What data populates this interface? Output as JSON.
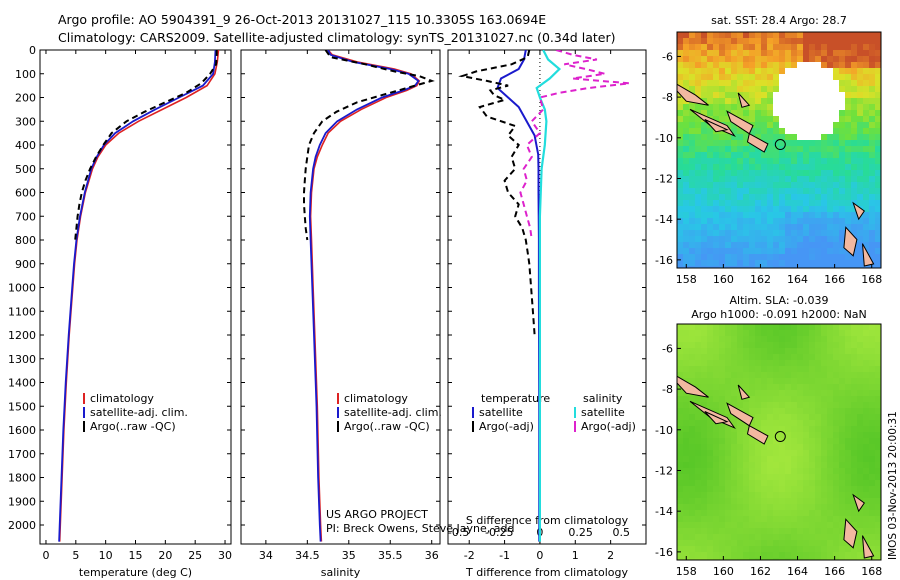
{
  "header": {
    "line1": "Argo profile: AO 5904391_9 26-Oct-2013 20131027_115 10.3305S 163.0694E",
    "line2": "Climatology: CARS2009. Satellite-adjusted climatology: synTS_20131027.nc (0.34d later)"
  },
  "project_text": [
    "US ARGO PROJECT",
    "PI: Breck Owens, Steve Jayne, add"
  ],
  "timestamp": "IMOS 03-Nov-2013 20:00:31",
  "colors": {
    "climatology": "#dd2222",
    "satellite": "#1a1acc",
    "argo": "#000000",
    "sal_satellite": "#22dddd",
    "sal_argo": "#dd22cc",
    "land": "#f2b8a0"
  },
  "chart_data": [
    {
      "type": "line",
      "panel": "temperature",
      "xlabel": "temperature (deg C)",
      "xlim": [
        -1,
        31
      ],
      "xticks": [
        0,
        5,
        10,
        15,
        20,
        25,
        30
      ],
      "ylim": [
        0,
        2080
      ],
      "yticks": [
        0,
        100,
        200,
        300,
        400,
        500,
        600,
        700,
        800,
        900,
        1000,
        1100,
        1200,
        1300,
        1400,
        1500,
        1600,
        1700,
        1800,
        1900,
        2000
      ],
      "legend": [
        "climatology",
        "satellite-adj. clim.",
        "Argo(..raw -QC)"
      ],
      "series": [
        {
          "name": "climatology",
          "depth": [
            0,
            50,
            100,
            150,
            200,
            250,
            300,
            350,
            400,
            450,
            500,
            600,
            700,
            800,
            900,
            1000,
            1200,
            1400,
            1600,
            1800,
            2000,
            2070
          ],
          "values": [
            28.9,
            28.7,
            28.3,
            27.0,
            23.5,
            19.5,
            15.5,
            12.2,
            10.0,
            8.7,
            7.8,
            6.6,
            5.8,
            5.2,
            4.8,
            4.5,
            3.9,
            3.4,
            3.0,
            2.7,
            2.4,
            2.3
          ]
        },
        {
          "name": "satellite-adj. clim.",
          "depth": [
            0,
            50,
            100,
            150,
            200,
            250,
            300,
            350,
            400,
            450,
            500,
            600,
            700,
            800,
            900,
            1000,
            1200,
            1400,
            1600,
            1800,
            2000,
            2070
          ],
          "values": [
            28.4,
            28.3,
            28.0,
            26.3,
            22.3,
            18.3,
            14.6,
            11.6,
            9.7,
            8.5,
            7.6,
            6.5,
            5.7,
            5.1,
            4.7,
            4.4,
            3.8,
            3.3,
            2.9,
            2.6,
            2.3,
            2.2
          ]
        },
        {
          "name": "Argo(..raw -QC)",
          "depth": [
            0,
            20,
            60,
            100,
            140,
            180,
            220,
            260,
            300,
            350,
            400,
            450,
            500,
            550,
            600,
            650,
            700,
            800
          ],
          "values": [
            28.6,
            28.6,
            28.5,
            27.5,
            26.0,
            23.5,
            20.0,
            16.5,
            13.5,
            11.0,
            9.6,
            8.4,
            7.4,
            6.6,
            6.0,
            5.6,
            5.3,
            4.9
          ]
        }
      ]
    },
    {
      "type": "line",
      "panel": "salinity",
      "xlabel": "salinity",
      "xlim": [
        33.7,
        36.1
      ],
      "xticks": [
        34,
        34.5,
        35,
        35.5,
        36
      ],
      "xticklabels": [
        "34",
        "34.5",
        "35",
        "35.5",
        "36"
      ],
      "ylim": [
        0,
        2080
      ],
      "legend": [
        "climatology",
        "satellite-adj. clim.",
        "Argo(..raw -QC)"
      ],
      "series": [
        {
          "name": "climatology",
          "depth": [
            0,
            20,
            50,
            80,
            100,
            130,
            150,
            170,
            200,
            250,
            300,
            350,
            400,
            450,
            500,
            600,
            700,
            800,
            1000,
            1200,
            1500,
            1800,
            2000,
            2070
          ],
          "values": [
            34.75,
            34.8,
            35.1,
            35.55,
            35.75,
            35.85,
            35.82,
            35.7,
            35.45,
            35.15,
            34.9,
            34.75,
            34.68,
            34.62,
            34.58,
            34.55,
            34.54,
            34.55,
            34.57,
            34.59,
            34.62,
            34.64,
            34.66,
            34.67
          ]
        },
        {
          "name": "satellite-adj. clim.",
          "depth": [
            0,
            20,
            50,
            80,
            100,
            130,
            150,
            170,
            200,
            250,
            300,
            350,
            400,
            450,
            500,
            600,
            700,
            800,
            1000,
            1200,
            1500,
            1800,
            2000,
            2070
          ],
          "values": [
            34.75,
            34.78,
            35.05,
            35.5,
            35.72,
            35.84,
            35.8,
            35.66,
            35.4,
            35.1,
            34.86,
            34.72,
            34.65,
            34.6,
            34.57,
            34.54,
            34.53,
            34.54,
            34.56,
            34.58,
            34.61,
            34.63,
            34.65,
            34.66
          ]
        },
        {
          "name": "Argo(..raw -QC)",
          "depth": [
            0,
            30,
            60,
            90,
            110,
            130,
            150,
            170,
            190,
            220,
            260,
            300,
            350,
            400,
            450,
            500,
            550,
            600,
            650,
            700,
            750,
            800
          ],
          "values": [
            34.72,
            34.78,
            35.2,
            35.55,
            35.85,
            36.0,
            35.8,
            35.6,
            35.4,
            35.1,
            34.85,
            34.68,
            34.58,
            34.52,
            34.5,
            34.48,
            34.47,
            34.46,
            34.46,
            34.47,
            34.48,
            34.5
          ]
        }
      ]
    },
    {
      "type": "line",
      "panel": "difference",
      "xlabel_T": "T difference from climatology",
      "xlabel_S": "S difference from climatology",
      "xlim_T": [
        -2.6,
        3.0
      ],
      "xticks_T": [
        -2,
        -1,
        0,
        1,
        2
      ],
      "xticks_S": [
        -0.5,
        -0.25,
        0,
        0.25,
        0.5
      ],
      "xticklabels_S": [
        "-0.5",
        "-0.25",
        "0",
        "0.25",
        "0.5"
      ],
      "ylim": [
        0,
        2080
      ],
      "legend_titles": [
        "temperature",
        "salinity"
      ],
      "legend": [
        "satellite",
        "Argo(-adj)",
        "satellite",
        "Argo(-adj)"
      ],
      "series": [
        {
          "name": "T satellite",
          "depth": [
            0,
            40,
            80,
            120,
            160,
            200,
            240,
            280,
            320,
            360,
            400,
            440,
            500,
            600,
            800,
            1000,
            1500,
            2000,
            2070
          ],
          "values": [
            -0.4,
            -0.45,
            -0.6,
            -1.1,
            -1.2,
            -0.9,
            -0.6,
            -0.45,
            -0.3,
            -0.15,
            -0.1,
            -0.05,
            -0.04,
            -0.04,
            -0.03,
            -0.03,
            -0.02,
            -0.02,
            -0.02
          ]
        },
        {
          "name": "T Argo(-adj)",
          "depth": [
            0,
            30,
            60,
            90,
            110,
            130,
            150,
            170,
            190,
            210,
            240,
            280,
            320,
            360,
            400,
            450,
            500,
            550,
            600,
            650,
            700,
            750,
            800,
            850,
            900,
            1000,
            1100,
            1200
          ],
          "values": [
            -0.3,
            -0.35,
            -0.8,
            -1.8,
            -2.2,
            -1.5,
            -0.9,
            -1.4,
            -1.3,
            -1.0,
            -1.7,
            -1.5,
            -0.7,
            -0.9,
            -0.6,
            -0.8,
            -0.7,
            -1.0,
            -0.9,
            -0.6,
            -0.7,
            -0.5,
            -0.4,
            -0.35,
            -0.3,
            -0.25,
            -0.2,
            -0.15
          ]
        },
        {
          "name": "S satellite",
          "depth": [
            0,
            40,
            80,
            120,
            160,
            200,
            250,
            300,
            400,
            500,
            700,
            1000,
            1500,
            2000,
            2070
          ],
          "values": [
            0.02,
            0.05,
            0.12,
            0.06,
            -0.02,
            0.0,
            0.03,
            0.04,
            0.03,
            0.01,
            0.0,
            0.0,
            0.0,
            0.0,
            0.0
          ]
        },
        {
          "name": "S Argo(-adj)",
          "depth": [
            0,
            20,
            40,
            60,
            80,
            100,
            120,
            140,
            160,
            180,
            200,
            250,
            300,
            350,
            400,
            450,
            500,
            550,
            600,
            650,
            700,
            750,
            800
          ],
          "values": [
            0.1,
            0.2,
            0.35,
            0.15,
            0.28,
            0.4,
            0.2,
            0.55,
            0.3,
            0.12,
            0.0,
            0.02,
            -0.05,
            0.0,
            -0.08,
            -0.05,
            -0.1,
            -0.08,
            -0.12,
            -0.1,
            -0.08,
            -0.06,
            -0.05
          ]
        }
      ]
    },
    {
      "type": "heatmap",
      "panel": "map-sst",
      "title": "sat. SST: 28.4 Argo: 28.7",
      "xlim": [
        157.5,
        168.5
      ],
      "ylim": [
        -16.4,
        -4.8
      ],
      "xticks": [
        158,
        160,
        162,
        164,
        166,
        168
      ],
      "yticks": [
        -6,
        -8,
        -10,
        -12,
        -14,
        -16
      ],
      "profile_location": [
        163.07,
        -10.33
      ]
    },
    {
      "type": "heatmap",
      "panel": "map-sla",
      "title": "Altim. SLA: -0.039",
      "subtitle": "Argo h1000: -0.091 h2000: NaN",
      "xlim": [
        157.5,
        168.5
      ],
      "ylim": [
        -16.4,
        -4.8
      ],
      "xticks": [
        158,
        160,
        162,
        164,
        166,
        168
      ],
      "yticks": [
        -6,
        -8,
        -10,
        -12,
        -14,
        -16
      ],
      "profile_location": [
        163.07,
        -10.33
      ]
    }
  ]
}
